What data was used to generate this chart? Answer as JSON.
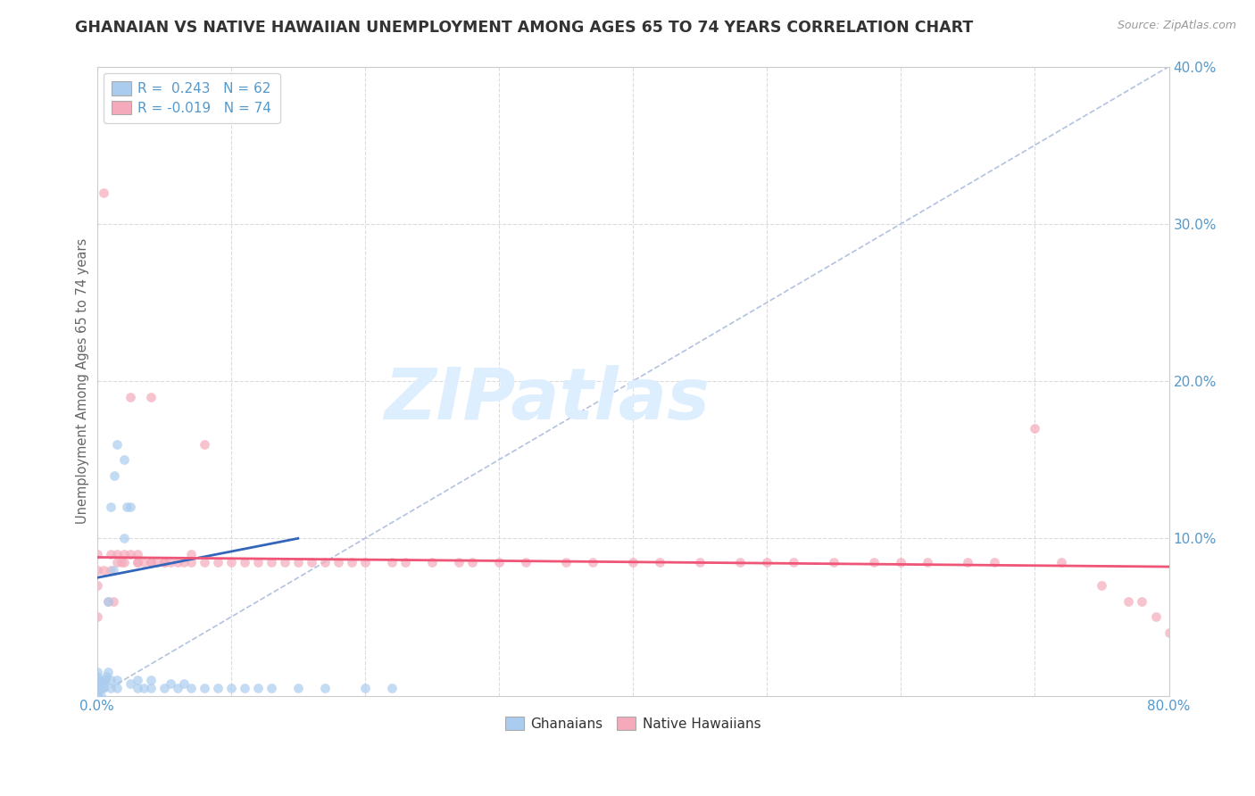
{
  "title": "GHANAIAN VS NATIVE HAWAIIAN UNEMPLOYMENT AMONG AGES 65 TO 74 YEARS CORRELATION CHART",
  "source": "Source: ZipAtlas.com",
  "ylabel": "Unemployment Among Ages 65 to 74 years",
  "xlim": [
    0,
    0.8
  ],
  "ylim": [
    0,
    0.4
  ],
  "ghanaian_color": "#aaccee",
  "native_hawaiian_color": "#f4aabb",
  "trend_ghanaian_color": "#3366bb",
  "trend_native_hawaiian_color": "#ee5577",
  "diagonal_color": "#aabbdd",
  "watermark_text": "ZIPatlas",
  "watermark_color": "#ddeeff",
  "legend_R_ghanaian": "0.243",
  "legend_N_ghanaian": "62",
  "legend_R_native": "-0.019",
  "legend_N_native": "74",
  "background_color": "#ffffff",
  "grid_color": "#cccccc",
  "title_color": "#333333",
  "axis_label_color": "#666666",
  "tick_label_color": "#5599cc",
  "legend_text_color": "#333333",
  "marker_size": 60,
  "marker_alpha": 0.7,
  "gh_x": [
    0.0,
    0.0,
    0.0,
    0.0,
    0.0,
    0.0,
    0.0,
    0.0,
    0.0,
    0.0,
    0.0,
    0.0,
    0.0,
    0.0,
    0.0,
    0.0,
    0.0,
    0.0,
    0.0,
    0.0,
    0.003,
    0.003,
    0.005,
    0.005,
    0.005,
    0.006,
    0.007,
    0.008,
    0.008,
    0.01,
    0.01,
    0.01,
    0.012,
    0.013,
    0.015,
    0.015,
    0.015,
    0.02,
    0.02,
    0.022,
    0.025,
    0.025,
    0.03,
    0.03,
    0.035,
    0.04,
    0.04,
    0.05,
    0.055,
    0.06,
    0.065,
    0.07,
    0.08,
    0.09,
    0.1,
    0.11,
    0.12,
    0.13,
    0.15,
    0.17,
    0.2,
    0.22
  ],
  "gh_y": [
    0.0,
    0.0,
    0.0,
    0.0,
    0.0,
    0.0,
    0.0,
    0.0,
    0.0,
    0.003,
    0.005,
    0.005,
    0.007,
    0.008,
    0.008,
    0.01,
    0.01,
    0.01,
    0.012,
    0.015,
    0.0,
    0.005,
    0.005,
    0.007,
    0.01,
    0.01,
    0.012,
    0.015,
    0.06,
    0.005,
    0.01,
    0.12,
    0.08,
    0.14,
    0.005,
    0.01,
    0.16,
    0.1,
    0.15,
    0.12,
    0.008,
    0.12,
    0.005,
    0.01,
    0.005,
    0.005,
    0.01,
    0.005,
    0.008,
    0.005,
    0.008,
    0.005,
    0.005,
    0.005,
    0.005,
    0.005,
    0.005,
    0.005,
    0.005,
    0.005,
    0.005,
    0.005
  ],
  "nh_x": [
    0.0,
    0.0,
    0.0,
    0.0,
    0.005,
    0.005,
    0.008,
    0.01,
    0.01,
    0.012,
    0.015,
    0.015,
    0.018,
    0.02,
    0.02,
    0.025,
    0.025,
    0.03,
    0.03,
    0.03,
    0.035,
    0.04,
    0.04,
    0.04,
    0.045,
    0.05,
    0.05,
    0.055,
    0.06,
    0.065,
    0.07,
    0.07,
    0.08,
    0.08,
    0.09,
    0.1,
    0.11,
    0.12,
    0.13,
    0.14,
    0.15,
    0.16,
    0.17,
    0.18,
    0.19,
    0.2,
    0.22,
    0.23,
    0.25,
    0.27,
    0.28,
    0.3,
    0.32,
    0.35,
    0.37,
    0.4,
    0.42,
    0.45,
    0.48,
    0.5,
    0.52,
    0.55,
    0.58,
    0.6,
    0.62,
    0.65,
    0.67,
    0.7,
    0.72,
    0.75,
    0.77,
    0.78,
    0.79,
    0.8
  ],
  "nh_y": [
    0.07,
    0.08,
    0.05,
    0.09,
    0.32,
    0.08,
    0.06,
    0.08,
    0.09,
    0.06,
    0.085,
    0.09,
    0.085,
    0.085,
    0.09,
    0.19,
    0.09,
    0.085,
    0.085,
    0.09,
    0.085,
    0.085,
    0.085,
    0.19,
    0.085,
    0.085,
    0.085,
    0.085,
    0.085,
    0.085,
    0.085,
    0.09,
    0.085,
    0.16,
    0.085,
    0.085,
    0.085,
    0.085,
    0.085,
    0.085,
    0.085,
    0.085,
    0.085,
    0.085,
    0.085,
    0.085,
    0.085,
    0.085,
    0.085,
    0.085,
    0.085,
    0.085,
    0.085,
    0.085,
    0.085,
    0.085,
    0.085,
    0.085,
    0.085,
    0.085,
    0.085,
    0.085,
    0.085,
    0.085,
    0.085,
    0.085,
    0.085,
    0.17,
    0.085,
    0.07,
    0.06,
    0.06,
    0.05,
    0.04
  ]
}
